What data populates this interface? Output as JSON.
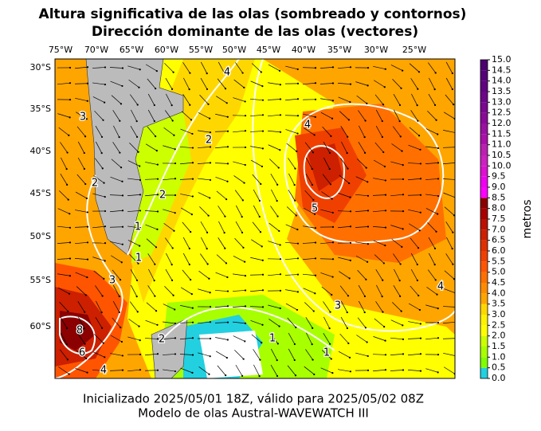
{
  "title": [
    "Altura significativa de las olas (sombreado y contornos)",
    "Dirección dominante de las olas (vectores)"
  ],
  "lon_labels": [
    "75°W",
    "70°W",
    "65°W",
    "60°W",
    "55°W",
    "50°W",
    "45°W",
    "40°W",
    "35°W",
    "30°W",
    "25°W"
  ],
  "lat_labels": [
    "30°S",
    "35°S",
    "40°S",
    "45°S",
    "50°S",
    "55°S",
    "60°S"
  ],
  "contour_labels": [
    "2",
    "3",
    "4",
    "5",
    "4",
    "3",
    "2",
    "1",
    "3",
    "4",
    "1",
    "2",
    "8",
    "6",
    "4",
    "2",
    "1",
    "1"
  ],
  "colorbar": {
    "label": "metros",
    "ticks": [
      {
        "value": 0,
        "label": "0.0"
      },
      {
        "value": 0.5,
        "label": "0.5"
      },
      {
        "value": 1,
        "label": "1.0"
      },
      {
        "value": 1.5,
        "label": "1.5"
      },
      {
        "value": 2,
        "label": "2.0"
      },
      {
        "value": 2.5,
        "label": "2.5"
      },
      {
        "value": 3,
        "label": "3.0"
      },
      {
        "value": 3.5,
        "label": "3.5"
      },
      {
        "value": 4,
        "label": "4.0"
      },
      {
        "value": 4.5,
        "label": "4.5"
      },
      {
        "value": 5,
        "label": "5.0"
      },
      {
        "value": 5.5,
        "label": "5.5"
      },
      {
        "value": 6,
        "label": "6.0"
      },
      {
        "value": 6.5,
        "label": "6.5"
      },
      {
        "value": 7,
        "label": "7.0"
      },
      {
        "value": 7.5,
        "label": "7.5"
      },
      {
        "value": 8,
        "label": "8.0"
      },
      {
        "value": 8.5,
        "label": "8.5"
      },
      {
        "value": 9,
        "label": "9.0"
      },
      {
        "value": 9.5,
        "label": "9.5"
      },
      {
        "value": 10,
        "label": "10.0"
      },
      {
        "value": 10.5,
        "label": "10.5"
      },
      {
        "value": 11,
        "label": "11.0"
      },
      {
        "value": 11.5,
        "label": "11.5"
      },
      {
        "value": 12,
        "label": "12.0"
      },
      {
        "value": 12.5,
        "label": "12.5"
      },
      {
        "value": 13,
        "label": "13.0"
      },
      {
        "value": 13.5,
        "label": "13.5"
      },
      {
        "value": 14,
        "label": "14.0"
      },
      {
        "value": 14.5,
        "label": "14.5"
      },
      {
        "value": 15,
        "label": "15.0"
      }
    ],
    "colors": [
      "#22d0e0",
      "#80ff00",
      "#a8ff00",
      "#ccff00",
      "#ffff00",
      "#fff200",
      "#ffd700",
      "#ffa500",
      "#ff8c00",
      "#ff7000",
      "#ff5500",
      "#f04000",
      "#e03000",
      "#cc2000",
      "#bb1000",
      "#a80000",
      "#8b0000",
      "#ff00ff",
      "#f000f0",
      "#dd10d0",
      "#cc20c0",
      "#bb20b0",
      "#aa10a8",
      "#9a10a0",
      "#8a0a98",
      "#7a0890",
      "#6c0688",
      "#600480",
      "#550278",
      "#4b0070"
    ]
  },
  "footer": [
    "Inicializado 2025/05/01 18Z, válido para 2025/05/02 08Z",
    "Modelo de olas Austral-WAVEWATCH III"
  ]
}
